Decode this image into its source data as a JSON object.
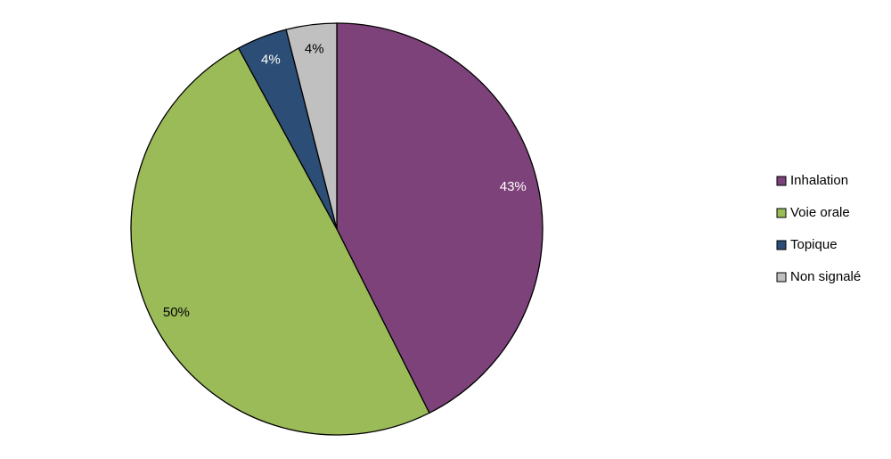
{
  "chart_data": {
    "type": "pie",
    "categories": [
      "Inhalation",
      "Voie orale",
      "Topique",
      "Non signalé"
    ],
    "values": [
      43,
      50,
      4,
      4
    ],
    "value_labels": [
      "43%",
      "50%",
      "4%",
      "4%"
    ],
    "colors": [
      "#7d4279",
      "#9bbb59",
      "#2c4d75",
      "#c0c0c0"
    ],
    "label_colors": [
      "#ffffff",
      "#000000",
      "#ffffff",
      "#000000"
    ],
    "legend": "right"
  }
}
